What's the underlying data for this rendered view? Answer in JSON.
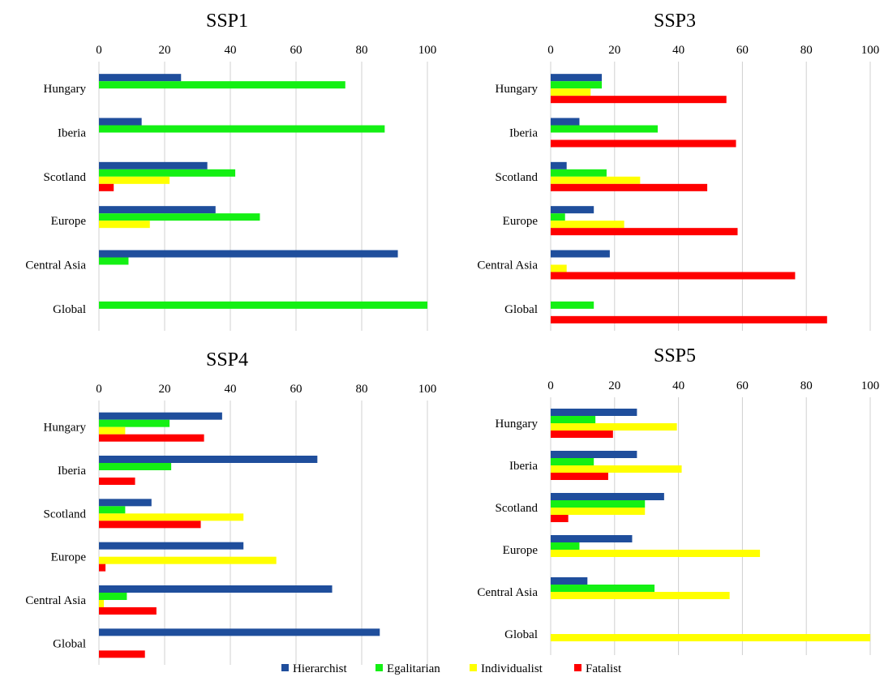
{
  "chart_data": [
    {
      "type": "bar",
      "orientation": "horizontal",
      "title": "SSP1",
      "xlim": [
        0,
        100
      ],
      "x_ticks": [
        "0",
        "20",
        "40",
        "60",
        "80",
        "100"
      ],
      "categories": [
        "Hungary",
        "Iberia",
        "Scotland",
        "Europe",
        "Central Asia",
        "Global"
      ],
      "series": [
        {
          "name": "Hierarchist",
          "values": [
            25,
            13,
            33,
            35.5,
            91,
            0
          ]
        },
        {
          "name": "Egalitarian",
          "values": [
            75,
            87,
            41.5,
            49,
            9,
            100
          ]
        },
        {
          "name": "Individualist",
          "values": [
            0,
            0,
            21.5,
            15.5,
            0,
            0
          ]
        },
        {
          "name": "Fatalist",
          "values": [
            0,
            0,
            4.5,
            0,
            0,
            0
          ]
        }
      ]
    },
    {
      "type": "bar",
      "orientation": "horizontal",
      "title": "SSP3",
      "xlim": [
        0,
        100
      ],
      "x_ticks": [
        "0",
        "20",
        "40",
        "60",
        "80",
        "100"
      ],
      "categories": [
        "Hungary",
        "Iberia",
        "Scotland",
        "Europe",
        "Central Asia",
        "Global"
      ],
      "series": [
        {
          "name": "Hierarchist",
          "values": [
            16,
            9,
            5,
            13.5,
            18.5,
            0
          ]
        },
        {
          "name": "Egalitarian",
          "values": [
            16,
            33.5,
            17.5,
            4.5,
            0,
            13.5
          ]
        },
        {
          "name": "Individualist",
          "values": [
            12.5,
            0,
            28,
            23,
            5,
            0
          ]
        },
        {
          "name": "Fatalist",
          "values": [
            55,
            58,
            49,
            58.5,
            76.5,
            86.5
          ]
        }
      ]
    },
    {
      "type": "bar",
      "orientation": "horizontal",
      "title": "SSP4",
      "xlim": [
        0,
        100
      ],
      "x_ticks": [
        "0",
        "20",
        "40",
        "60",
        "80",
        "100"
      ],
      "categories": [
        "Hungary",
        "Iberia",
        "Scotland",
        "Europe",
        "Central Asia",
        "Global"
      ],
      "series": [
        {
          "name": "Hierarchist",
          "values": [
            37.5,
            66.5,
            16,
            44,
            71,
            85.5
          ]
        },
        {
          "name": "Egalitarian",
          "values": [
            21.5,
            22,
            8,
            0,
            8.5,
            0
          ]
        },
        {
          "name": "Individualist",
          "values": [
            8,
            0,
            44,
            54,
            1.5,
            0
          ]
        },
        {
          "name": "Fatalist",
          "values": [
            32,
            11,
            31,
            2,
            17.5,
            14
          ]
        }
      ]
    },
    {
      "type": "bar",
      "orientation": "horizontal",
      "title": "SSP5",
      "xlim": [
        0,
        100
      ],
      "x_ticks": [
        "0",
        "20",
        "40",
        "60",
        "80",
        "100"
      ],
      "categories": [
        "Hungary",
        "Iberia",
        "Scotland",
        "Europe",
        "Central Asia",
        "Global"
      ],
      "series": [
        {
          "name": "Hierarchist",
          "values": [
            27,
            27,
            35.5,
            25.5,
            11.5,
            0
          ]
        },
        {
          "name": "Egalitarian",
          "values": [
            14,
            13.5,
            29.5,
            9,
            32.5,
            0
          ]
        },
        {
          "name": "Individualist",
          "values": [
            39.5,
            41,
            29.5,
            65.5,
            56,
            100
          ]
        },
        {
          "name": "Fatalist",
          "values": [
            19.5,
            18,
            5.5,
            0,
            0,
            0
          ]
        }
      ]
    }
  ],
  "legend": {
    "position": "bottom",
    "items": [
      {
        "label": "Hierarchist",
        "color": "#1f4e9c"
      },
      {
        "label": "Egalitarian",
        "color": "#14f014"
      },
      {
        "label": "Individualist",
        "color": "#ffff00"
      },
      {
        "label": "Fatalist",
        "color": "#ff0000"
      }
    ]
  },
  "colors": {
    "grid": "#d0d0d0",
    "Hierarchist": "#1f4e9c",
    "Egalitarian": "#14f014",
    "Individualist": "#ffff00",
    "Fatalist": "#ff0000"
  }
}
